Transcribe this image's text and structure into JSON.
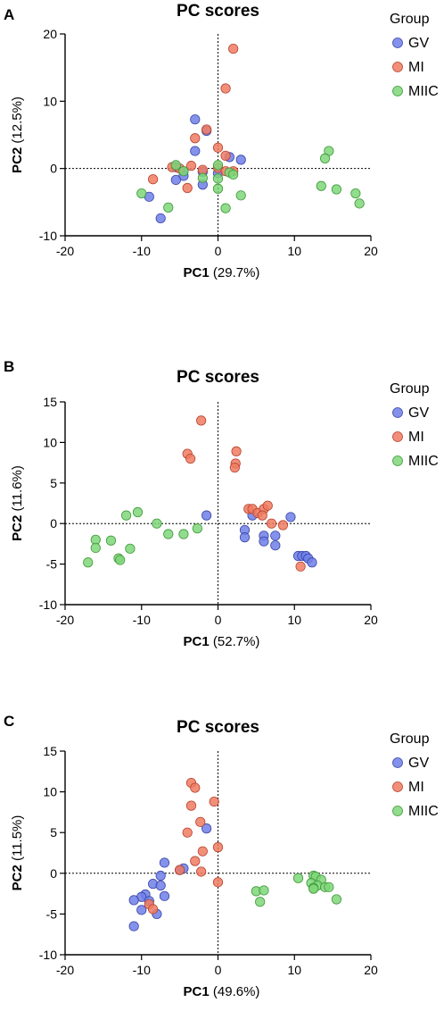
{
  "groups": [
    {
      "key": "GV",
      "label": "GV",
      "fill": "#6E7FE8",
      "stroke": "#3A47A8"
    },
    {
      "key": "MI",
      "label": "MI",
      "fill": "#F07B62",
      "stroke": "#B8442F"
    },
    {
      "key": "MIIC",
      "label": "MIIC",
      "fill": "#7FD679",
      "stroke": "#3F9A3A"
    }
  ],
  "legend_title": "Group",
  "chart_data": [
    {
      "panel": "A",
      "type": "scatter",
      "title": "PC scores",
      "xlabel_bold": "PC1",
      "xlabel_pct": "(29.7%)",
      "ylabel_bold": "PC2",
      "ylabel_pct": "(12.5%)",
      "xlim": [
        -20,
        20
      ],
      "ylim": [
        -10,
        20
      ],
      "xticks": [
        -20,
        -10,
        0,
        10,
        20
      ],
      "yticks": [
        -10,
        0,
        10,
        20
      ],
      "series": [
        {
          "name": "GV",
          "points": [
            [
              -3,
              7.3
            ],
            [
              -1.5,
              5.6
            ],
            [
              -3,
              2.6
            ],
            [
              1.5,
              1.7
            ],
            [
              3,
              1.3
            ],
            [
              -5.5,
              0.2
            ],
            [
              -4.5,
              -0.4
            ],
            [
              -4.5,
              -1.1
            ],
            [
              -2,
              -0.5
            ],
            [
              -5.5,
              -1.7
            ],
            [
              -2,
              -2.4
            ],
            [
              -9,
              -4.2
            ],
            [
              -7.5,
              -7.4
            ],
            [
              0,
              -0.7
            ]
          ]
        },
        {
          "name": "MI",
          "points": [
            [
              2,
              17.8
            ],
            [
              1,
              11.9
            ],
            [
              -1.5,
              5.8
            ],
            [
              -3,
              4.5
            ],
            [
              0,
              3.1
            ],
            [
              1,
              1.9
            ],
            [
              -3.5,
              0.4
            ],
            [
              -6,
              0.2
            ],
            [
              -5,
              0
            ],
            [
              0,
              0.1
            ],
            [
              1,
              -0.4
            ],
            [
              2,
              -0.4
            ],
            [
              -4,
              -2.9
            ],
            [
              -8.5,
              -1.6
            ],
            [
              -2,
              -0.2
            ]
          ]
        },
        {
          "name": "MIIC",
          "points": [
            [
              14.5,
              2.6
            ],
            [
              14,
              1.5
            ],
            [
              -5.5,
              0.5
            ],
            [
              0,
              0.5
            ],
            [
              -4.5,
              -0.4
            ],
            [
              1.5,
              -0.6
            ],
            [
              2,
              -0.9
            ],
            [
              0,
              -1.5
            ],
            [
              -2,
              -1.4
            ],
            [
              0,
              -3
            ],
            [
              13.5,
              -2.6
            ],
            [
              15.5,
              -3.1
            ],
            [
              18,
              -3.7
            ],
            [
              18.5,
              -5.2
            ],
            [
              -10,
              -3.7
            ],
            [
              -6.5,
              -5.8
            ],
            [
              3,
              -4
            ],
            [
              1,
              -5.9
            ]
          ]
        }
      ]
    },
    {
      "panel": "B",
      "type": "scatter",
      "title": "PC scores",
      "xlabel_bold": "PC1",
      "xlabel_pct": "(52.7%)",
      "ylabel_bold": "PC2",
      "ylabel_pct": "(11.6%)",
      "xlim": [
        -20,
        20
      ],
      "ylim": [
        -10,
        15
      ],
      "xticks": [
        -20,
        -10,
        0,
        10,
        20
      ],
      "yticks": [
        -10,
        -5,
        0,
        5,
        10,
        15
      ],
      "series": [
        {
          "name": "GV",
          "points": [
            [
              -1.5,
              1
            ],
            [
              4.5,
              1
            ],
            [
              9.5,
              0.8
            ],
            [
              3.5,
              -0.8
            ],
            [
              6,
              -1.5
            ],
            [
              7.5,
              -1.5
            ],
            [
              3.5,
              -1.7
            ],
            [
              6,
              -2.2
            ],
            [
              7.5,
              -2.7
            ],
            [
              10.5,
              -4
            ],
            [
              11,
              -4
            ],
            [
              11.5,
              -4
            ],
            [
              11.8,
              -4.3
            ],
            [
              12.3,
              -4.8
            ]
          ]
        },
        {
          "name": "MI",
          "points": [
            [
              -2.2,
              12.7
            ],
            [
              -4,
              8.6
            ],
            [
              -3.6,
              8
            ],
            [
              2.4,
              8.9
            ],
            [
              2.3,
              7.4
            ],
            [
              2.2,
              6.9
            ],
            [
              4,
              1.8
            ],
            [
              4.5,
              1.8
            ],
            [
              5.2,
              1.3
            ],
            [
              6,
              1.8
            ],
            [
              6.5,
              2.2
            ],
            [
              5.8,
              1
            ],
            [
              7,
              0
            ],
            [
              8.5,
              -0.2
            ],
            [
              10.8,
              -5.3
            ]
          ]
        },
        {
          "name": "MIIC",
          "points": [
            [
              -10.5,
              1.4
            ],
            [
              -12,
              1
            ],
            [
              -8,
              0
            ],
            [
              -2.7,
              -0.6
            ],
            [
              -6.5,
              -1.3
            ],
            [
              -4.5,
              -1.3
            ],
            [
              -14,
              -2.1
            ],
            [
              -16,
              -2
            ],
            [
              -16,
              -3
            ],
            [
              -11.5,
              -3.1
            ],
            [
              -13,
              -4.3
            ],
            [
              -12.8,
              -4.5
            ],
            [
              -17,
              -4.8
            ]
          ]
        }
      ]
    },
    {
      "panel": "C",
      "type": "scatter",
      "title": "PC scores",
      "xlabel_bold": "PC1",
      "xlabel_pct": "(49.6%)",
      "ylabel_bold": "PC2",
      "ylabel_pct": "(11.5%)",
      "xlim": [
        -20,
        20
      ],
      "ylim": [
        -10,
        15
      ],
      "xticks": [
        -20,
        -10,
        0,
        10,
        20
      ],
      "yticks": [
        -10,
        -5,
        0,
        5,
        10,
        15
      ],
      "series": [
        {
          "name": "GV",
          "points": [
            [
              -1.5,
              5.5
            ],
            [
              -7,
              1.3
            ],
            [
              -4.5,
              0.6
            ],
            [
              -5,
              0.4
            ],
            [
              -7.5,
              -0.3
            ],
            [
              -8.5,
              -1.3
            ],
            [
              -7.5,
              -1.5
            ],
            [
              -9.5,
              -2.6
            ],
            [
              -10,
              -2.9
            ],
            [
              -7,
              -2.8
            ],
            [
              -11,
              -3.3
            ],
            [
              -9,
              -3.4
            ],
            [
              -10,
              -4.5
            ],
            [
              -8,
              -5
            ],
            [
              -11,
              -6.5
            ]
          ]
        },
        {
          "name": "MI",
          "points": [
            [
              -3.5,
              11.1
            ],
            [
              -3,
              10.5
            ],
            [
              -0.5,
              8.8
            ],
            [
              -3.5,
              8.3
            ],
            [
              -2.3,
              6.3
            ],
            [
              -4,
              5
            ],
            [
              -2,
              2.7
            ],
            [
              0,
              3.2
            ],
            [
              -3,
              1.5
            ],
            [
              -2.2,
              0.2
            ],
            [
              -5,
              0.4
            ],
            [
              0,
              -1.1
            ],
            [
              -9,
              -3.8
            ],
            [
              -8.5,
              -4.4
            ]
          ]
        },
        {
          "name": "MIIC",
          "points": [
            [
              12.5,
              -0.3
            ],
            [
              12.8,
              -0.4
            ],
            [
              10.5,
              -0.6
            ],
            [
              13.5,
              -0.8
            ],
            [
              12.2,
              -1.2
            ],
            [
              13,
              -1.5
            ],
            [
              12.5,
              -1.8
            ],
            [
              14,
              -1.7
            ],
            [
              14.5,
              -1.7
            ],
            [
              12.5,
              -1.9
            ],
            [
              5,
              -2.2
            ],
            [
              6,
              -2.1
            ],
            [
              15.5,
              -3.2
            ],
            [
              5.5,
              -3.5
            ]
          ]
        }
      ]
    }
  ]
}
